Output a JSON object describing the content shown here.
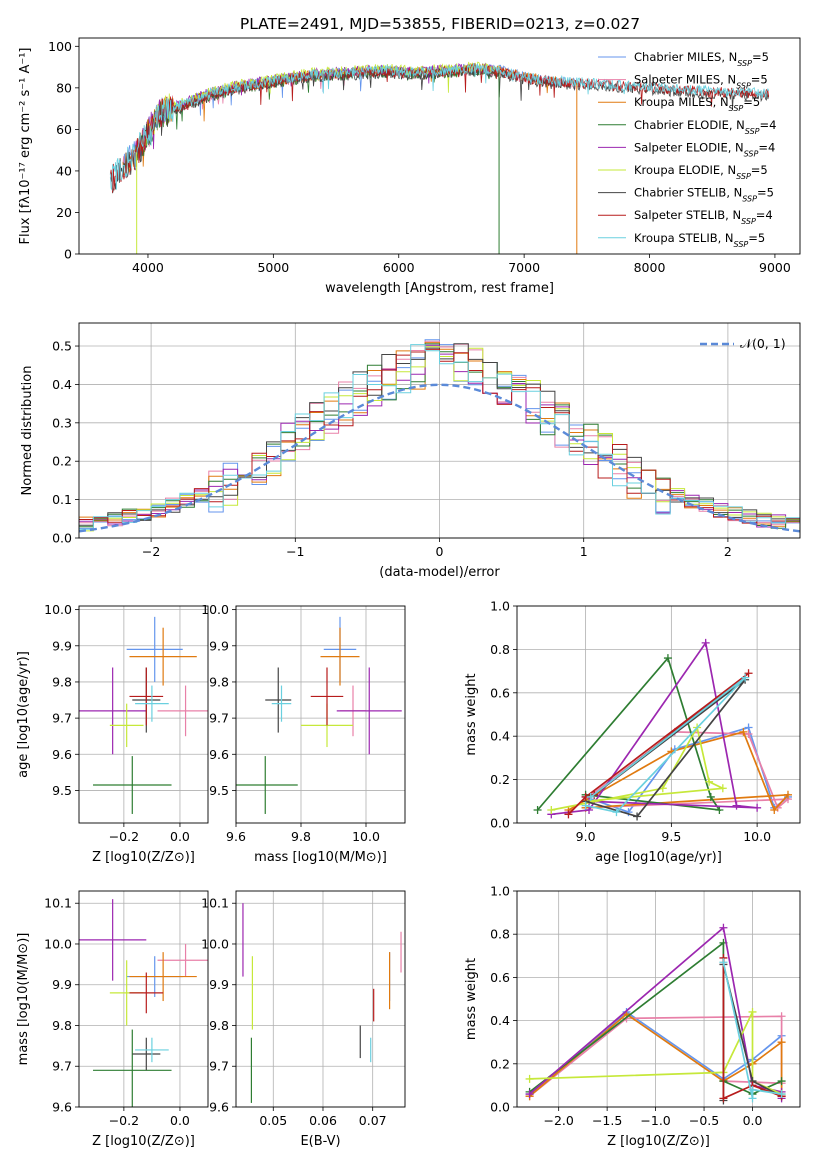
{
  "page_title": "PLATE=2491, MJD=53855, FIBERID=0213, z=0.027",
  "chart_data": [
    {
      "id": "spectrum",
      "type": "line",
      "xlabel": "wavelength [Angstrom, rest frame]",
      "ylabel": "Flux [fλ10⁻¹⁷ erg cm⁻² s⁻¹ A⁻¹]",
      "xlim": [
        3450,
        9200
      ],
      "ylim": [
        0,
        104
      ],
      "xticks": [
        4000,
        5000,
        6000,
        7000,
        8000,
        9000
      ],
      "yticks": [
        0,
        20,
        40,
        60,
        80,
        100
      ],
      "legend_position": "upper right",
      "anchors": {
        "x": [
          3700,
          3800,
          3900,
          4000,
          4100,
          4300,
          4500,
          4700,
          5000,
          5300,
          5600,
          5900,
          6100,
          6400,
          6600,
          6800,
          7000,
          7200,
          7500,
          8000,
          8500,
          8900
        ],
        "y": [
          35,
          42,
          48,
          58,
          68,
          72,
          77,
          80,
          83,
          86,
          87,
          88,
          87,
          88,
          89,
          88,
          85,
          83,
          82,
          80,
          78,
          77
        ]
      },
      "series": [
        {
          "name": "Chabrier MILES, N_SSP=5",
          "color": "#6495ed",
          "xrange": [
            3800,
            7420
          ],
          "offset": 0.6
        },
        {
          "name": "Salpeter MILES, N_SSP=5",
          "color": "#e880a8",
          "xrange": [
            3800,
            7420
          ],
          "offset": -0.4
        },
        {
          "name": "Kroupa MILES, N_SSP=5",
          "color": "#e07a10",
          "xrange": [
            3800,
            7420
          ],
          "offset": 0.2
        },
        {
          "name": "Chabrier ELODIE, N_SSP=4",
          "color": "#2e7d32",
          "xrange": [
            3900,
            6800
          ],
          "offset": -0.8
        },
        {
          "name": "Salpeter ELODIE, N_SSP=4",
          "color": "#9c27b0",
          "xrange": [
            3900,
            6800
          ],
          "offset": 0.9
        },
        {
          "name": "Kroupa ELODIE, N_SSP=5",
          "color": "#c6e83a",
          "xrange": [
            3900,
            6800
          ],
          "offset": 1.2
        },
        {
          "name": "Chabrier STELIB, N_SSP=5",
          "color": "#444444",
          "xrange": [
            3700,
            8950
          ],
          "offset": -1.0
        },
        {
          "name": "Salpeter STELIB, N_SSP=4",
          "color": "#b71c1c",
          "xrange": [
            3700,
            8950
          ],
          "offset": 0.0
        },
        {
          "name": "Kroupa STELIB, N_SSP=5",
          "color": "#6ad0df",
          "xrange": [
            3700,
            8950
          ],
          "offset": 0.4
        }
      ],
      "drops": [
        {
          "series": 5,
          "x": 3910,
          "to": 0
        },
        {
          "series": 3,
          "x": 6800,
          "to": 0
        },
        {
          "series": 2,
          "x": 7420,
          "to": 0
        }
      ]
    },
    {
      "id": "residuals",
      "type": "histogram",
      "xlabel": "(data-model)/error",
      "ylabel": "Normed distribution",
      "xlim": [
        -2.5,
        2.5
      ],
      "ylim": [
        0,
        0.56
      ],
      "xticks": [
        -2,
        -1,
        0,
        1,
        2
      ],
      "yticks": [
        0.0,
        0.1,
        0.2,
        0.3,
        0.4,
        0.5
      ],
      "bin_width": 0.1,
      "legend": "N(0,1)",
      "normal_color": "#5b8ad8"
    },
    {
      "id": "age_vs_Z",
      "type": "errorbar",
      "xlabel": "Z [log10(Z/Z⊙)]",
      "ylabel": "age  [log10(age/yr)]",
      "xlim": [
        -0.36,
        0.1
      ],
      "ylim": [
        9.41,
        10.01
      ],
      "xticks": [
        -0.2,
        0.0
      ],
      "yticks": [
        9.5,
        9.6,
        9.7,
        9.8,
        9.9,
        10.0
      ],
      "points": [
        {
          "color": "#6495ed",
          "x": -0.09,
          "xerr": 0.1,
          "y": 9.89,
          "yerr": 0.09
        },
        {
          "color": "#e880a8",
          "x": 0.02,
          "xerr": 0.1,
          "y": 9.72,
          "yerr": 0.07
        },
        {
          "color": "#e07a10",
          "x": -0.06,
          "xerr": 0.12,
          "y": 9.87,
          "yerr": 0.08
        },
        {
          "color": "#2e7d32",
          "x": -0.17,
          "xerr": 0.14,
          "y": 9.515,
          "yerr": 0.08
        },
        {
          "color": "#9c27b0",
          "x": -0.24,
          "xerr": 0.12,
          "y": 9.72,
          "yerr": 0.12
        },
        {
          "color": "#c6e83a",
          "x": -0.19,
          "xerr": 0.06,
          "y": 9.68,
          "yerr": 0.06
        },
        {
          "color": "#444444",
          "x": -0.12,
          "xerr": 0.05,
          "y": 9.75,
          "yerr": 0.09
        },
        {
          "color": "#b71c1c",
          "x": -0.12,
          "xerr": 0.06,
          "y": 9.76,
          "yerr": 0.08
        },
        {
          "color": "#6ad0df",
          "x": -0.1,
          "xerr": 0.06,
          "y": 9.74,
          "yerr": 0.05
        }
      ]
    },
    {
      "id": "age_vs_mass",
      "type": "errorbar",
      "xlabel": "mass [log10(M/M⊙)]",
      "ylabel": "",
      "xlim": [
        9.6,
        10.12
      ],
      "ylim": [
        9.41,
        10.01
      ],
      "xticks": [
        9.6,
        9.8,
        10.0
      ],
      "yticks": [
        9.5,
        9.6,
        9.7,
        9.8,
        9.9,
        10.0
      ],
      "points": [
        {
          "color": "#6495ed",
          "x": 9.92,
          "xerr": 0.05,
          "y": 9.89,
          "yerr": 0.09
        },
        {
          "color": "#e880a8",
          "x": 9.96,
          "xerr": 0.04,
          "y": 9.72,
          "yerr": 0.07
        },
        {
          "color": "#e07a10",
          "x": 9.92,
          "xerr": 0.06,
          "y": 9.87,
          "yerr": 0.08
        },
        {
          "color": "#2e7d32",
          "x": 9.69,
          "xerr": 0.1,
          "y": 9.515,
          "yerr": 0.08
        },
        {
          "color": "#9c27b0",
          "x": 10.01,
          "xerr": 0.1,
          "y": 9.72,
          "yerr": 0.12
        },
        {
          "color": "#c6e83a",
          "x": 9.88,
          "xerr": 0.08,
          "y": 9.68,
          "yerr": 0.06
        },
        {
          "color": "#444444",
          "x": 9.73,
          "xerr": 0.04,
          "y": 9.75,
          "yerr": 0.09
        },
        {
          "color": "#b71c1c",
          "x": 9.88,
          "xerr": 0.05,
          "y": 9.76,
          "yerr": 0.08
        },
        {
          "color": "#6ad0df",
          "x": 9.74,
          "xerr": 0.03,
          "y": 9.74,
          "yerr": 0.05
        }
      ]
    },
    {
      "id": "mass_vs_Z",
      "type": "errorbar",
      "xlabel": "Z [log10(Z/Z⊙)]",
      "ylabel": "mass [log10(M/M⊙)]",
      "xlim": [
        -0.36,
        0.1
      ],
      "ylim": [
        9.6,
        10.13
      ],
      "xticks": [
        -0.2,
        0.0
      ],
      "yticks": [
        9.6,
        9.7,
        9.8,
        9.9,
        10.0,
        10.1
      ],
      "points": [
        {
          "color": "#6495ed",
          "x": -0.09,
          "xerr": 0.1,
          "y": 9.92,
          "yerr": 0.05
        },
        {
          "color": "#e880a8",
          "x": 0.02,
          "xerr": 0.1,
          "y": 9.96,
          "yerr": 0.04
        },
        {
          "color": "#e07a10",
          "x": -0.06,
          "xerr": 0.12,
          "y": 9.92,
          "yerr": 0.06
        },
        {
          "color": "#2e7d32",
          "x": -0.17,
          "xerr": 0.14,
          "y": 9.69,
          "yerr": 0.1
        },
        {
          "color": "#9c27b0",
          "x": -0.24,
          "xerr": 0.12,
          "y": 10.01,
          "yerr": 0.1
        },
        {
          "color": "#c6e83a",
          "x": -0.19,
          "xerr": 0.06,
          "y": 9.88,
          "yerr": 0.08
        },
        {
          "color": "#444444",
          "x": -0.12,
          "xerr": 0.05,
          "y": 9.73,
          "yerr": 0.04
        },
        {
          "color": "#b71c1c",
          "x": -0.12,
          "xerr": 0.06,
          "y": 9.88,
          "yerr": 0.05
        },
        {
          "color": "#6ad0df",
          "x": -0.1,
          "xerr": 0.06,
          "y": 9.74,
          "yerr": 0.03
        }
      ]
    },
    {
      "id": "mass_vs_ebv",
      "type": "errorbar",
      "xlabel": "E(B-V)",
      "ylabel": "",
      "xlim": [
        0.0425,
        0.0765
      ],
      "ylim": [
        9.6,
        10.13
      ],
      "xticks": [
        0.05,
        0.06,
        0.07
      ],
      "yticks": [
        9.6,
        9.7,
        9.8,
        9.9,
        10.0,
        10.1
      ],
      "points": [
        {
          "color": "#6495ed",
          "x": 0.0734,
          "xerr": 0,
          "y": 9.92,
          "yerr": 0.06
        },
        {
          "color": "#e880a8",
          "x": 0.0757,
          "xerr": 0,
          "y": 9.98,
          "yerr": 0.05
        },
        {
          "color": "#e07a10",
          "x": 0.0734,
          "xerr": 0,
          "y": 9.91,
          "yerr": 0.07
        },
        {
          "color": "#2e7d32",
          "x": 0.0456,
          "xerr": 0,
          "y": 9.69,
          "yerr": 0.08
        },
        {
          "color": "#9c27b0",
          "x": 0.0439,
          "xerr": 0,
          "y": 10.01,
          "yerr": 0.09
        },
        {
          "color": "#c6e83a",
          "x": 0.0458,
          "xerr": 0,
          "y": 9.88,
          "yerr": 0.09
        },
        {
          "color": "#444444",
          "x": 0.0675,
          "xerr": 0,
          "y": 9.76,
          "yerr": 0.04
        },
        {
          "color": "#b71c1c",
          "x": 0.0702,
          "xerr": 0,
          "y": 9.85,
          "yerr": 0.04
        },
        {
          "color": "#6ad0df",
          "x": 0.0696,
          "xerr": 0,
          "y": 9.74,
          "yerr": 0.03
        }
      ]
    },
    {
      "id": "weight_vs_age",
      "type": "line",
      "xlabel": "age  [log10(age/yr)]",
      "ylabel": "mass weight",
      "xlim": [
        8.6,
        10.25
      ],
      "ylim": [
        0,
        1
      ],
      "xticks": [
        9.0,
        9.5,
        10.0
      ],
      "yticks": [
        0.0,
        0.2,
        0.4,
        0.6,
        0.8,
        1.0
      ],
      "series": [
        {
          "color": "#6495ed",
          "x": [
            9.0,
            9.25,
            9.52,
            9.95,
            10.1,
            10.18
          ],
          "y": [
            0.12,
            0.05,
            0.34,
            0.44,
            0.07,
            0.12
          ]
        },
        {
          "color": "#e880a8",
          "x": [
            8.9,
            9.52,
            9.95,
            10.12,
            10.18,
            9.0
          ],
          "y": [
            0.05,
            0.42,
            0.41,
            0.07,
            0.11,
            0.07
          ]
        },
        {
          "color": "#e07a10",
          "x": [
            8.9,
            9.5,
            9.92,
            10.1,
            10.18,
            9.0
          ],
          "y": [
            0.06,
            0.33,
            0.42,
            0.06,
            0.13,
            0.07
          ]
        },
        {
          "color": "#2e7d32",
          "x": [
            8.72,
            9.48,
            9.73,
            9.78,
            9.0
          ],
          "y": [
            0.06,
            0.76,
            0.12,
            0.06,
            0.13
          ]
        },
        {
          "color": "#9c27b0",
          "x": [
            8.8,
            9.02,
            9.7,
            9.88,
            10.0,
            9.02
          ],
          "y": [
            0.04,
            0.06,
            0.83,
            0.08,
            0.07,
            0.1
          ]
        },
        {
          "color": "#c6e83a",
          "x": [
            8.8,
            9.45,
            9.65,
            9.72,
            9.8,
            9.0
          ],
          "y": [
            0.06,
            0.16,
            0.44,
            0.19,
            0.16,
            0.1
          ]
        },
        {
          "color": "#444444",
          "x": [
            9.0,
            9.3,
            9.93,
            9.05
          ],
          "y": [
            0.1,
            0.03,
            0.66,
            0.13
          ]
        },
        {
          "color": "#b71c1c",
          "x": [
            8.9,
            9.0,
            9.95,
            9.05
          ],
          "y": [
            0.04,
            0.12,
            0.69,
            0.13
          ]
        },
        {
          "color": "#6ad0df",
          "x": [
            9.0,
            9.18,
            9.93,
            9.03
          ],
          "y": [
            0.08,
            0.05,
            0.67,
            0.12
          ]
        }
      ]
    },
    {
      "id": "weight_vs_Z",
      "type": "line",
      "xlabel": "Z [log10(Z/Z⊙)]",
      "ylabel": "mass weight",
      "xlim": [
        -2.43,
        0.49
      ],
      "ylim": [
        0,
        1
      ],
      "xticks": [
        -2.0,
        -1.5,
        -1.0,
        -0.5,
        0.0
      ],
      "yticks": [
        0.0,
        0.2,
        0.4,
        0.6,
        0.8,
        1.0
      ],
      "series": [
        {
          "color": "#6495ed",
          "x": [
            -2.3,
            -1.3,
            -0.3,
            0.0,
            0.3
          ],
          "y": [
            0.06,
            0.44,
            0.13,
            0.22,
            0.33
          ]
        },
        {
          "color": "#e880a8",
          "x": [
            -2.3,
            -1.3,
            0.3,
            0.3,
            -0.3
          ],
          "y": [
            0.05,
            0.41,
            0.42,
            0.11,
            0.12
          ]
        },
        {
          "color": "#e07a10",
          "x": [
            -2.3,
            -1.3,
            -0.3,
            0.0,
            0.3,
            0.3
          ],
          "y": [
            0.05,
            0.43,
            0.12,
            0.2,
            0.3,
            0.05
          ]
        },
        {
          "color": "#2e7d32",
          "x": [
            -2.3,
            -0.3,
            -0.3,
            0.0,
            0.3
          ],
          "y": [
            0.07,
            0.76,
            0.12,
            0.06,
            0.12
          ]
        },
        {
          "color": "#9c27b0",
          "x": [
            -2.3,
            -0.3,
            0.0,
            0.3,
            0.3
          ],
          "y": [
            0.06,
            0.83,
            0.1,
            0.07,
            0.04
          ]
        },
        {
          "color": "#c6e83a",
          "x": [
            -2.3,
            -0.3,
            0.0,
            0.0,
            0.3
          ],
          "y": [
            0.13,
            0.16,
            0.44,
            0.12,
            0.06
          ]
        },
        {
          "color": "#444444",
          "x": [
            -0.3,
            -0.3,
            0.0,
            0.3
          ],
          "y": [
            0.03,
            0.66,
            0.12,
            0.05
          ]
        },
        {
          "color": "#b71c1c",
          "x": [
            -0.3,
            -0.3,
            0.0,
            0.3
          ],
          "y": [
            0.69,
            0.04,
            0.1,
            0.05
          ]
        },
        {
          "color": "#6ad0df",
          "x": [
            -0.3,
            0.0,
            0.0,
            0.3
          ],
          "y": [
            0.67,
            0.04,
            0.08,
            0.06
          ]
        }
      ]
    }
  ]
}
